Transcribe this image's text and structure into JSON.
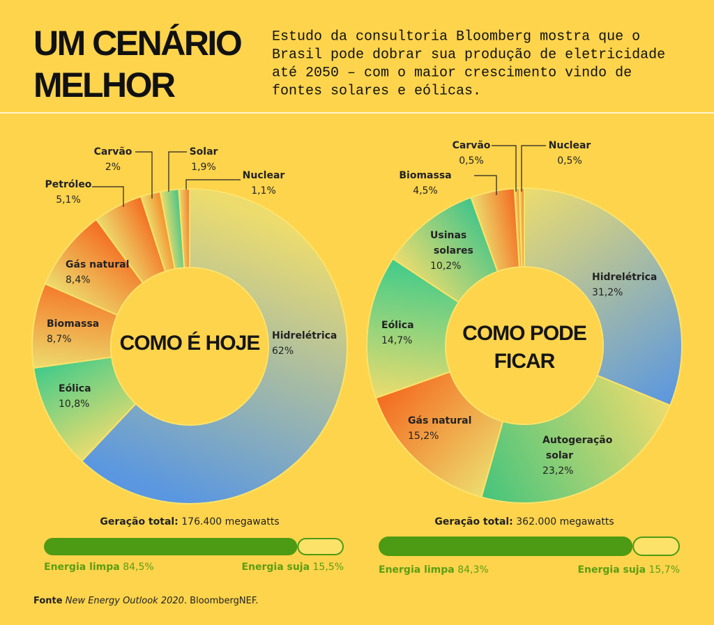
{
  "header": {
    "title": [
      "UM CENÁRIO",
      "MELHOR"
    ],
    "description": [
      "Estudo da consultoria Bloomberg mostra que o",
      "Brasil pode dobrar sua produção de eletricidade",
      "até 2050 – com o maior crescimento vindo de",
      "fontes solares e eólicas."
    ]
  },
  "chart_data": [
    {
      "type": "pie",
      "donut": true,
      "center_label": [
        "COMO É HOJE"
      ],
      "categories": [
        "Hidrelétrica",
        "Eólica",
        "Biomassa",
        "Gás natural",
        "Petróleo",
        "Carvão",
        "Solar",
        "Nuclear"
      ],
      "values": [
        62,
        10.8,
        8.7,
        8.4,
        5.1,
        2,
        1.9,
        1.1
      ],
      "value_labels": [
        "62%",
        "10,8%",
        "8,7%",
        "8,4%",
        "5,1%",
        "2%",
        "1,9%",
        "1,1%"
      ],
      "colors": [
        "#5a97e0",
        "#3fcb8a",
        "#f47a2a",
        "#f46a20",
        "#f46a20",
        "#f58a2a",
        "#3fc48a",
        "#f47a2a"
      ],
      "total_label": "Geração total:",
      "total": "176.400 megawatts",
      "energy": {
        "categories": [
          "Energia limpa",
          "Energia suja"
        ],
        "values": [
          84.5,
          15.5
        ],
        "value_labels": [
          "84,5%",
          "15,5%"
        ],
        "color": "#4d9a14"
      }
    },
    {
      "type": "pie",
      "donut": true,
      "center_label": [
        "COMO PODE",
        "FICAR"
      ],
      "categories": [
        "Hidrelétrica",
        "Autogeração solar",
        "Gás natural",
        "Eólica",
        "Usinas solares",
        "Biomassa",
        "Carvão",
        "Nuclear"
      ],
      "values": [
        31.2,
        23.2,
        15.2,
        14.7,
        10.2,
        4.5,
        0.5,
        0.5
      ],
      "value_labels": [
        "31,2%",
        "23,2%",
        "15,2%",
        "14,7%",
        "10,2%",
        "4,5%",
        "0,5%",
        "0,5%"
      ],
      "colors": [
        "#5a97e0",
        "#45c47c",
        "#f46a20",
        "#3fcb8a",
        "#3fc48a",
        "#f46a20",
        "#f58a2a",
        "#f47a2a"
      ],
      "total_label": "Geração total:",
      "total": "362.000 megawatts",
      "energy": {
        "categories": [
          "Energia limpa",
          "Energia suja"
        ],
        "values": [
          84.3,
          15.7
        ],
        "value_labels": [
          "84,3%",
          "15,7%"
        ],
        "color": "#4d9a14"
      }
    }
  ],
  "source": {
    "label": "Fonte",
    "title": "New Energy Outlook 2020",
    "publisher": ". BloombergNEF."
  }
}
